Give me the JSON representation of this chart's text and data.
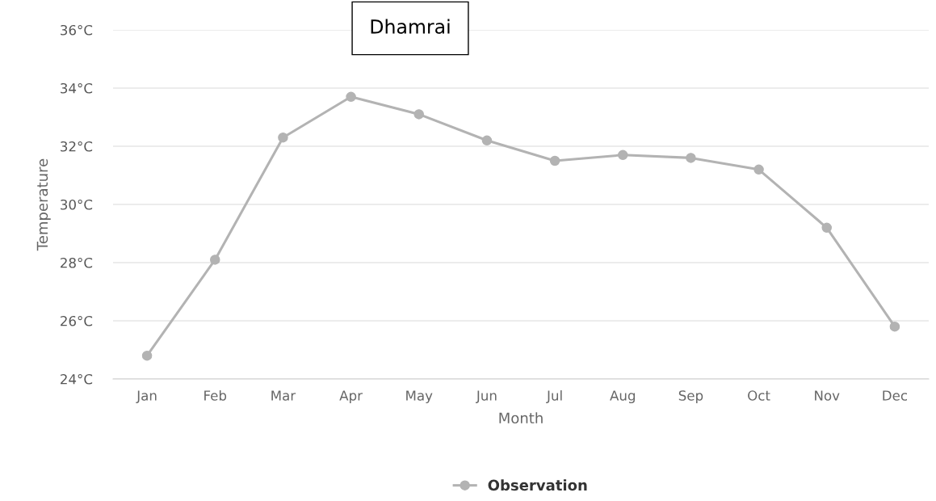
{
  "chart_data": {
    "type": "line",
    "title": "Dhamrai",
    "xlabel": "Month",
    "ylabel": "Temperature",
    "categories": [
      "Jan",
      "Feb",
      "Mar",
      "Apr",
      "May",
      "Jun",
      "Jul",
      "Aug",
      "Sep",
      "Oct",
      "Nov",
      "Dec"
    ],
    "series": [
      {
        "name": "Observation",
        "color": "#b3b3b3",
        "values": [
          24.8,
          28.1,
          32.3,
          33.7,
          33.1,
          32.2,
          31.5,
          31.7,
          31.6,
          31.2,
          29.2,
          25.8
        ]
      }
    ],
    "ylim": [
      24,
      36
    ],
    "yticks": [
      {
        "value": 24,
        "label": "24°C"
      },
      {
        "value": 26,
        "label": "26°C"
      },
      {
        "value": 28,
        "label": "28°C"
      },
      {
        "value": 30,
        "label": "30°C"
      },
      {
        "value": 32,
        "label": "32°C"
      },
      {
        "value": 34,
        "label": "34°C"
      },
      {
        "value": 36,
        "label": "36°C"
      }
    ],
    "grid": "y",
    "legend": "bottom",
    "marker": "circle",
    "line_style": "solid"
  }
}
